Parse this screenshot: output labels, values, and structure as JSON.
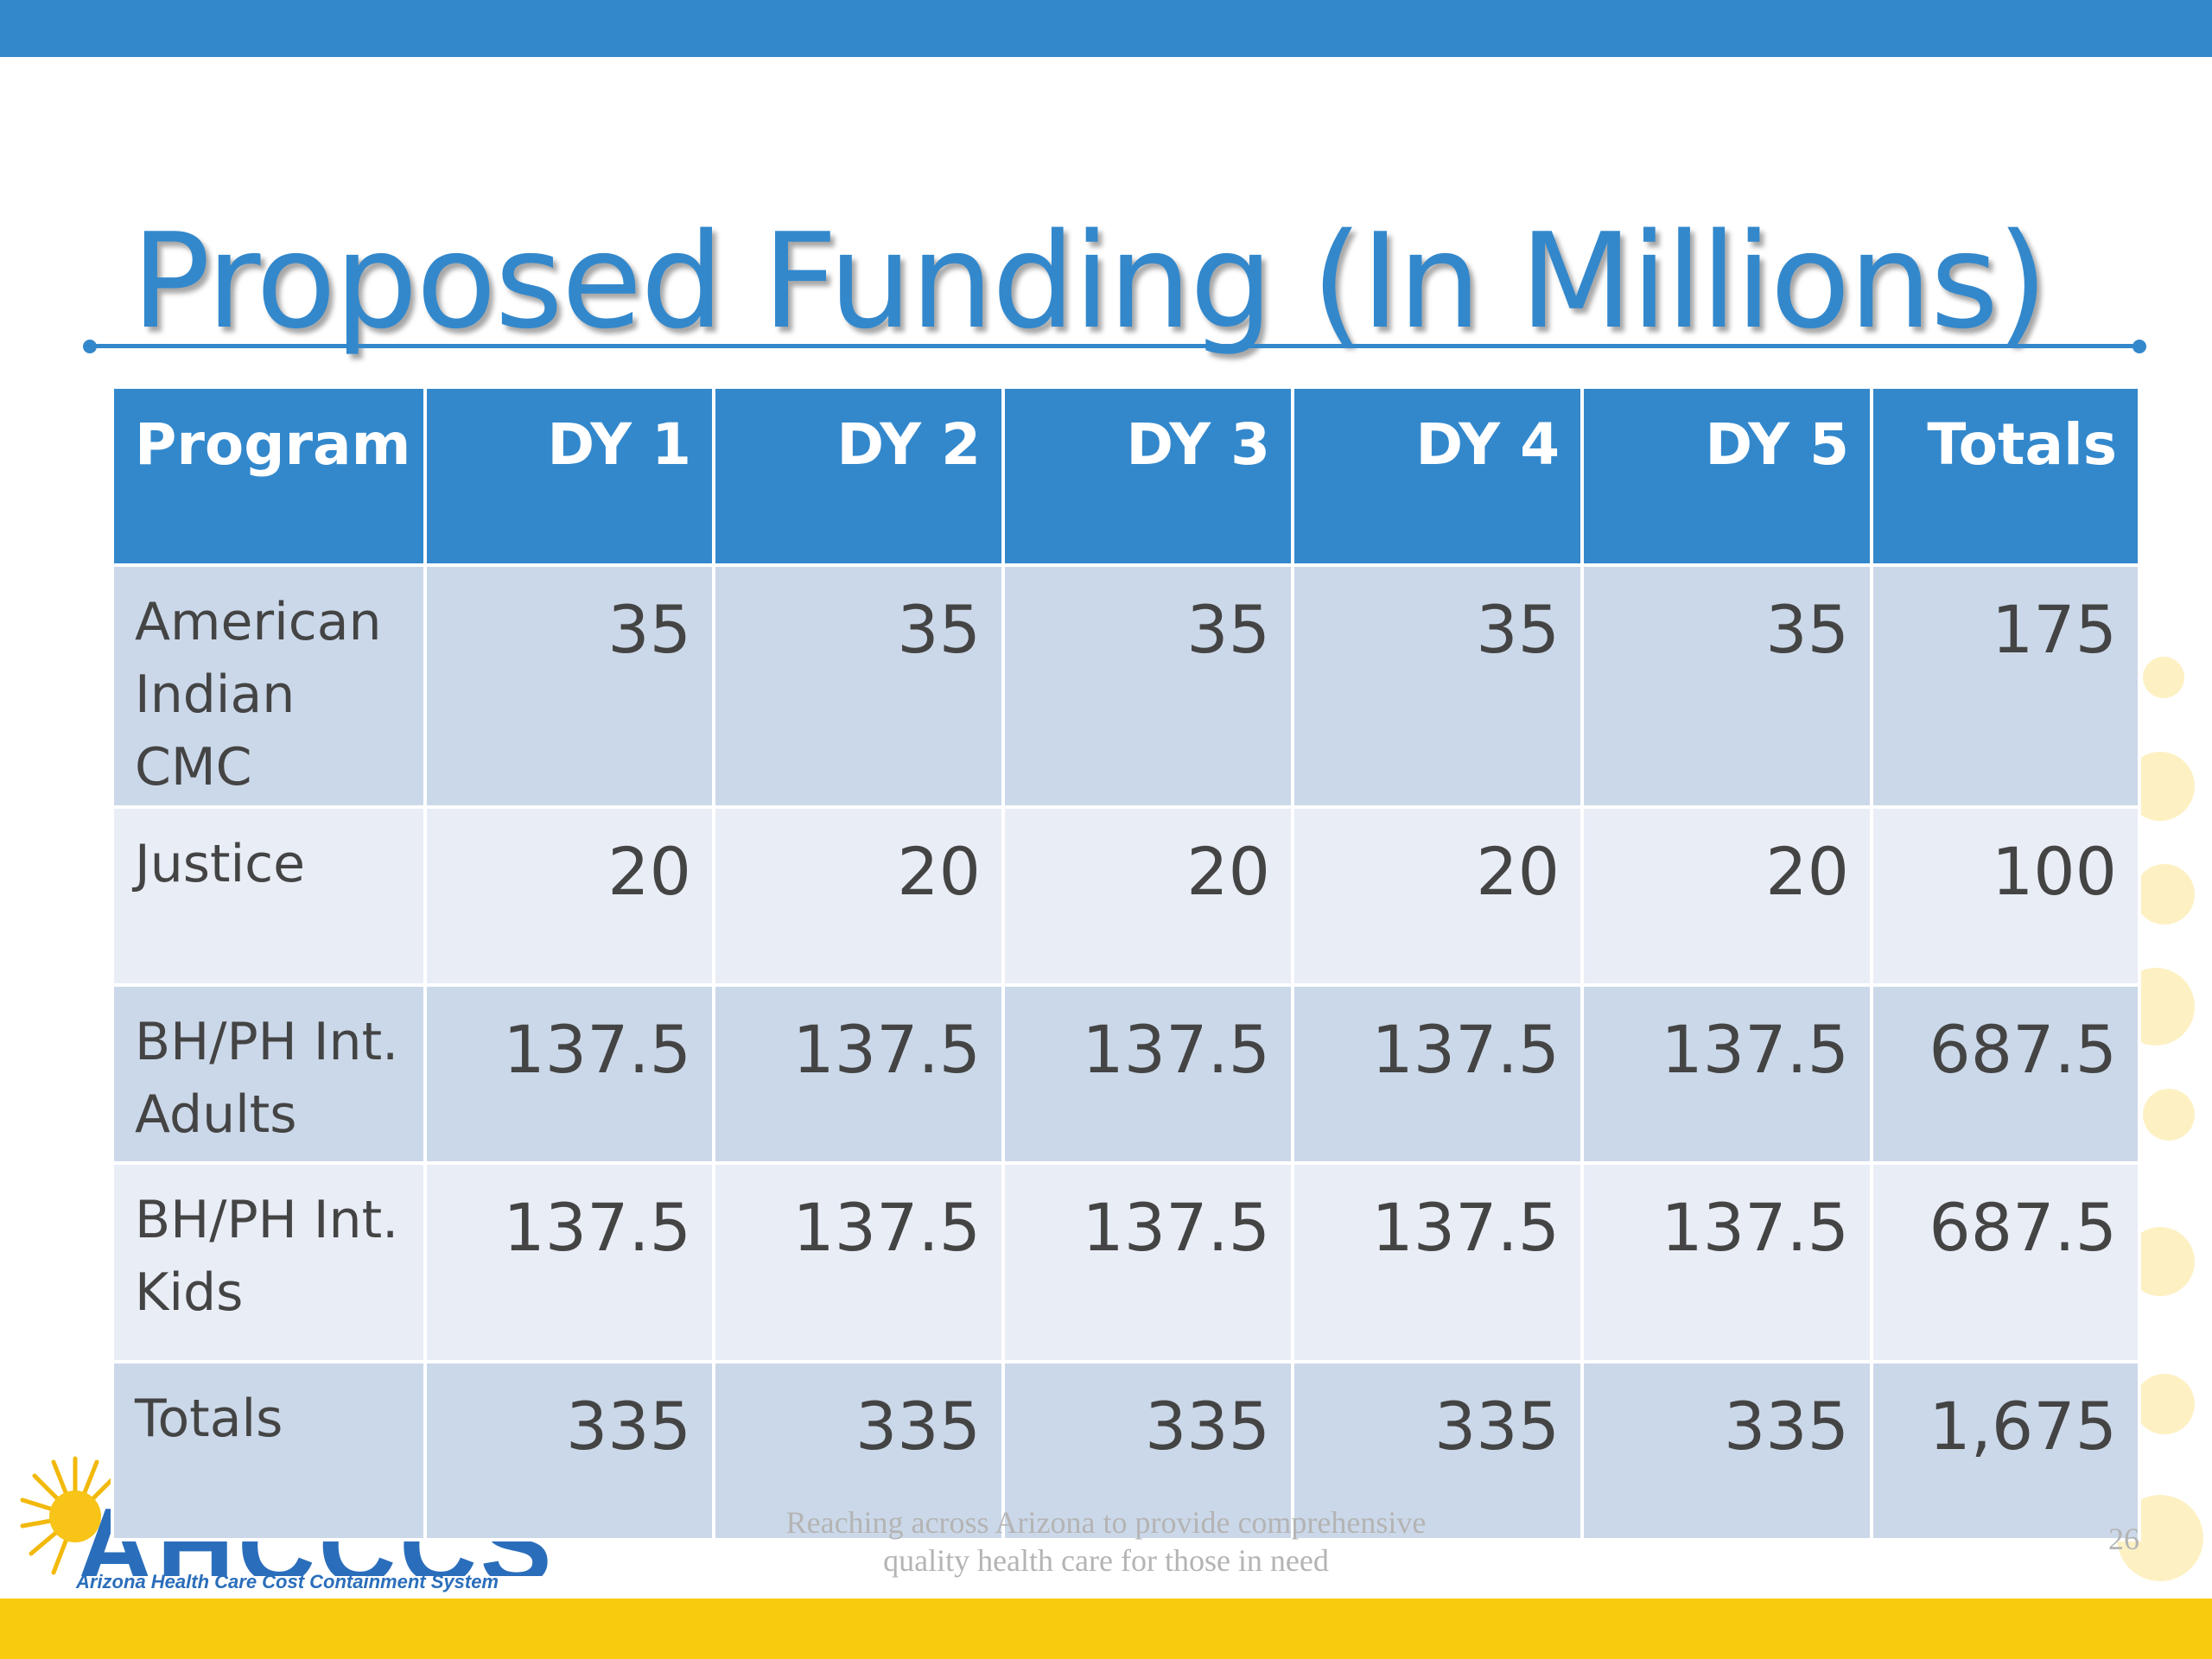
{
  "slide": {
    "title": "Proposed Funding (In Millions)",
    "footer_line1": "Reaching across Arizona to provide comprehensive",
    "footer_line2": "quality health care for those in need",
    "page_number": "26",
    "logo_text": "AHCCCS",
    "logo_org": "Arizona Health Care Cost Containment System"
  },
  "table": {
    "headers": [
      "Program",
      "DY 1",
      "DY 2",
      "DY 3",
      "DY 4",
      "DY 5",
      "Totals"
    ],
    "rows": [
      {
        "program": "American Indian CMC",
        "values": [
          "35",
          "35",
          "35",
          "35",
          "35",
          "175"
        ]
      },
      {
        "program": "Justice",
        "values": [
          "20",
          "20",
          "20",
          "20",
          "20",
          "100"
        ]
      },
      {
        "program": "BH/PH Int. Adults",
        "values": [
          "137.5",
          "137.5",
          "137.5",
          "137.5",
          "137.5",
          "687.5"
        ]
      },
      {
        "program": "BH/PH Int. Kids",
        "values": [
          "137.5",
          "137.5",
          "137.5",
          "137.5",
          "137.5",
          "687.5"
        ]
      },
      {
        "program": "Totals",
        "values": [
          "335",
          "335",
          "335",
          "335",
          "335",
          "1,675"
        ]
      }
    ]
  },
  "colors": {
    "brand_blue": "#3388cc",
    "accent_yellow": "#f9cb0f",
    "row_dark": "#cbd8e9",
    "row_light": "#e8edf6"
  }
}
